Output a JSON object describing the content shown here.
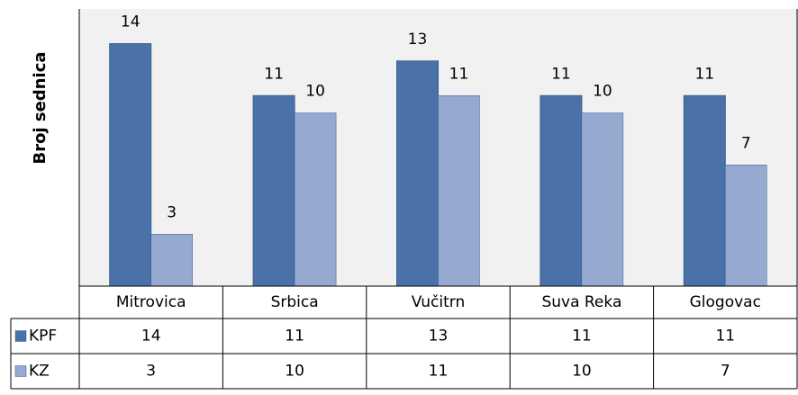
{
  "chart_data": {
    "type": "bar",
    "y_label": "Broj sednica",
    "categories": [
      "Mitrovica",
      "Srbica",
      "Vučitrn",
      "Suva Reka",
      "Glogovac"
    ],
    "series": [
      {
        "name": "KPF",
        "color": "#4a72a8",
        "values": [
          14,
          11,
          13,
          11,
          11
        ]
      },
      {
        "name": "KZ",
        "color": "#95a9d1",
        "values": [
          3,
          10,
          11,
          10,
          7
        ]
      }
    ],
    "ylim": [
      0,
      16
    ]
  }
}
